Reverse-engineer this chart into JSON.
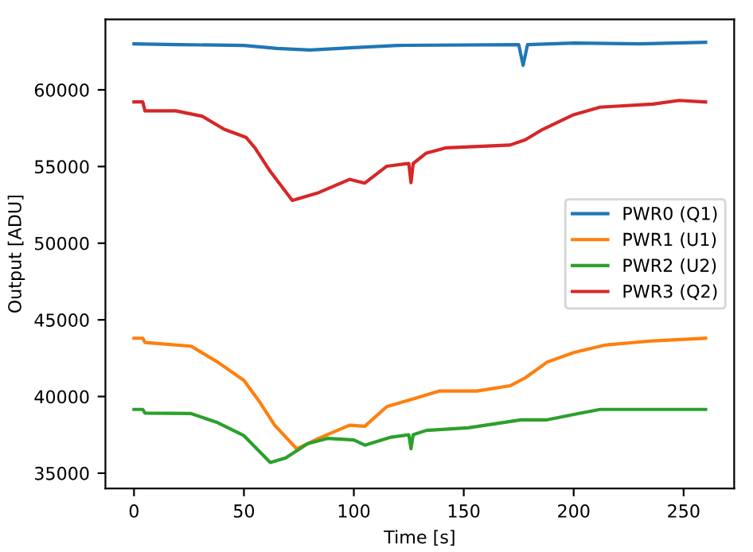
{
  "chart_data": {
    "type": "line",
    "xlabel": "Time [s]",
    "ylabel": "Output [ADU]",
    "xlim": [
      -13,
      273
    ],
    "xticks": [
      0,
      50,
      100,
      150,
      200,
      250
    ],
    "ylim": [
      34000,
      64600
    ],
    "yticks": [
      35000,
      40000,
      45000,
      50000,
      55000,
      60000
    ],
    "grid": false,
    "legend": "right",
    "marker": "none",
    "line_style": "solid",
    "series": [
      {
        "name": "PWR0 (Q1)",
        "color": "#1f77b4",
        "x": [
          0,
          20,
          50,
          65,
          80,
          100,
          120,
          175,
          177,
          179,
          200,
          230,
          260
        ],
        "values": [
          63000,
          62950,
          62900,
          62700,
          62600,
          62750,
          62900,
          62950,
          61600,
          62950,
          63050,
          63000,
          63100
        ]
      },
      {
        "name": "PWR1 (U1)",
        "color": "#ff7f0e",
        "x": [
          0,
          4,
          5,
          26,
          38,
          50,
          57,
          64,
          74,
          84,
          98,
          105,
          115,
          127,
          139,
          156,
          171,
          178,
          188,
          200,
          214,
          236,
          260
        ],
        "values": [
          43800,
          43800,
          43520,
          43280,
          42250,
          41050,
          39680,
          38130,
          36590,
          37270,
          38130,
          38060,
          39340,
          39850,
          40360,
          40360,
          40700,
          41220,
          42250,
          42870,
          43350,
          43630,
          43800
        ]
      },
      {
        "name": "PWR2 (U2)",
        "color": "#2ca02c",
        "x": [
          0,
          4,
          5,
          26,
          38,
          50,
          62,
          69,
          79,
          88,
          100,
          105,
          117,
          125,
          126,
          127,
          133,
          152,
          176,
          188,
          202,
          212,
          260
        ],
        "values": [
          39160,
          39160,
          38920,
          38890,
          38300,
          37450,
          35700,
          35990,
          36930,
          37270,
          37170,
          36830,
          37350,
          37510,
          36590,
          37510,
          37790,
          37960,
          38480,
          38480,
          38890,
          39160,
          39160
        ]
      },
      {
        "name": "PWR3 (Q2)",
        "color": "#d62728",
        "x": [
          0,
          4,
          5,
          19,
          31,
          41,
          51,
          55,
          62,
          72,
          84,
          98,
          105,
          115,
          125,
          126,
          127,
          133,
          142,
          171,
          178,
          186,
          200,
          212,
          236,
          248,
          260
        ],
        "values": [
          59210,
          59210,
          58630,
          58630,
          58280,
          57430,
          56900,
          56220,
          54680,
          52790,
          53300,
          54160,
          53920,
          55020,
          55200,
          53950,
          55200,
          55880,
          56220,
          56400,
          56740,
          57430,
          58380,
          58870,
          59070,
          59310,
          59210
        ]
      }
    ]
  }
}
